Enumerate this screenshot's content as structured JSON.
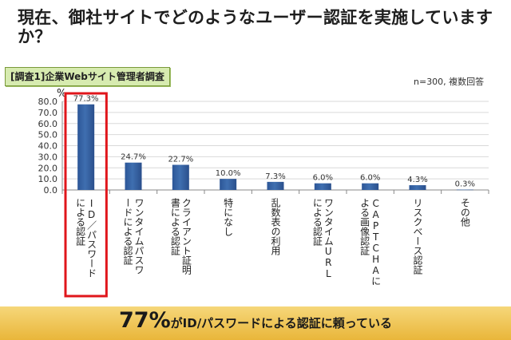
{
  "title": "現在、御社サイトでどのようなユーザー認証を実施していますか？",
  "survey_label": "[調査1]企業Webサイト管理者調査",
  "sample_note": "n=300, 複数回答",
  "highlight_color": "#e0161b",
  "banner": {
    "emphasis": "77%",
    "text": "がID/パスワードによる認証に頼っている"
  },
  "chart_data": {
    "type": "bar",
    "ylabel": "%",
    "ylim": [
      0,
      80
    ],
    "yticks": [
      "80.0",
      "70.0",
      "60.0",
      "50.0",
      "40.0",
      "30.0",
      "20.0",
      "10.0",
      "0.0"
    ],
    "categories": [
      "ID／パスワードによる認証",
      "ワンタイムパスワードによる認証",
      "クライアント証明書による認証",
      "特になし",
      "乱数表の利用",
      "ワンタイムURLによる認証",
      "CAPTCHAによる画像認証",
      "リスクベース認証",
      "その他"
    ],
    "values": [
      77.3,
      24.7,
      22.7,
      10.0,
      7.3,
      6.0,
      6.0,
      4.3,
      0.3
    ],
    "data_labels": [
      "77.3%",
      "24.7%",
      "22.7%",
      "10.0%",
      "7.3%",
      "6.0%",
      "6.0%",
      "4.3%",
      "0.3%"
    ],
    "bar_color": "#3f6fb0",
    "grid": true
  }
}
